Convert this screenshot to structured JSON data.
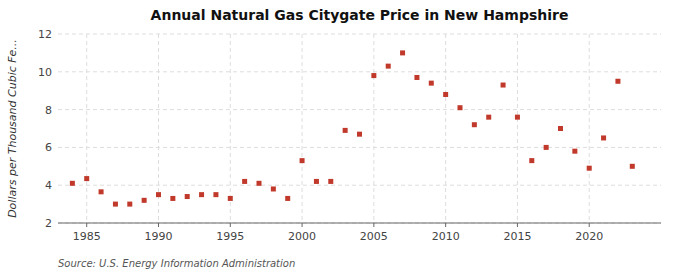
{
  "chart_data": {
    "type": "scatter",
    "title": "Annual Natural Gas Citygate Price in New Hampshire",
    "ylabel": "Dollars per Thousand Cubic Fe...",
    "annotation": "Source: U.S. Energy Information Administration",
    "x": [
      1984,
      1985,
      1986,
      1987,
      1988,
      1989,
      1990,
      1991,
      1992,
      1993,
      1994,
      1995,
      1996,
      1997,
      1998,
      1999,
      2000,
      2001,
      2002,
      2003,
      2004,
      2005,
      2006,
      2007,
      2008,
      2009,
      2010,
      2011,
      2012,
      2013,
      2014,
      2015,
      2016,
      2017,
      2018,
      2019,
      2020,
      2021,
      2022,
      2023
    ],
    "values": [
      4.1,
      4.35,
      3.65,
      3.0,
      3.0,
      3.2,
      3.5,
      3.3,
      3.4,
      3.5,
      3.5,
      3.3,
      4.2,
      4.1,
      3.8,
      3.3,
      5.3,
      4.2,
      4.2,
      6.9,
      6.7,
      9.8,
      10.3,
      11.0,
      9.7,
      9.4,
      8.8,
      8.1,
      7.2,
      7.6,
      9.3,
      7.6,
      5.3,
      6.0,
      7.0,
      5.8,
      4.9,
      6.5,
      9.5,
      5.0
    ],
    "color": "#c0392b",
    "marker": "square",
    "grid": true,
    "xlim": [
      1983,
      2025
    ],
    "ylim": [
      2,
      12
    ],
    "xticks": [
      1985,
      1990,
      1995,
      2000,
      2005,
      2010,
      2015,
      2020
    ],
    "yticks": [
      2,
      4,
      6,
      8,
      10,
      12
    ]
  }
}
